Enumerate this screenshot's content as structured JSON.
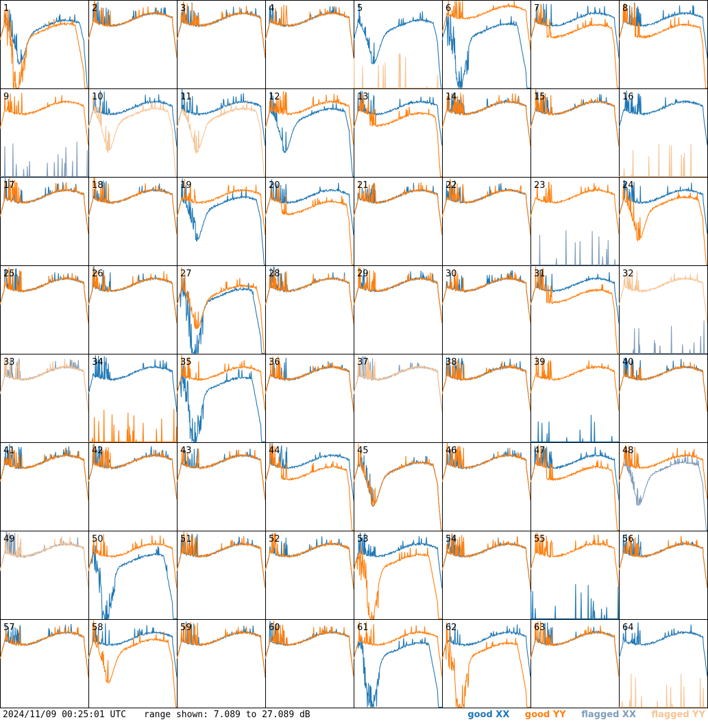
{
  "chart_data": {
    "type": "line",
    "layout": "8x8 small multiples",
    "timestamp": "2024/11/09 00:25:01 UTC",
    "range_label": "range shown: 7.089 to 27.089 dB",
    "y_range_db": [
      7.089,
      27.089
    ],
    "legend": {
      "good_xx": "good XX",
      "good_yy": "good YY",
      "flagged_xx": "flagged XX",
      "flagged_yy": "flagged YY"
    },
    "colors": {
      "good_xx": "#1f77b4",
      "good_yy": "#ff7f0e",
      "flagged_xx": "#7f9cbb",
      "flagged_yy": "#f7c493"
    },
    "panels": [
      {
        "id": "1",
        "xx": "good",
        "yy": "good",
        "xx_shape": "drop",
        "yy_shape": "deepdrop"
      },
      {
        "id": "2",
        "xx": "good",
        "yy": "good",
        "xx_shape": "normal",
        "yy_shape": "normal"
      },
      {
        "id": "3",
        "xx": "good",
        "yy": "good",
        "xx_shape": "normal",
        "yy_shape": "normal"
      },
      {
        "id": "4",
        "xx": "good",
        "yy": "good",
        "xx_shape": "normal",
        "yy_shape": "normal"
      },
      {
        "id": "5",
        "xx": "good",
        "yy": "flagged",
        "xx_shape": "drop",
        "yy_shape": "dead"
      },
      {
        "id": "6",
        "xx": "good",
        "yy": "good",
        "xx_shape": "deepdrop",
        "yy_shape": "high"
      },
      {
        "id": "7",
        "xx": "good",
        "yy": "good",
        "xx_shape": "normal",
        "yy_shape": "lowflat"
      },
      {
        "id": "8",
        "xx": "good",
        "yy": "good",
        "xx_shape": "normal",
        "yy_shape": "lowflat"
      },
      {
        "id": "9",
        "xx": "flagged",
        "yy": "good",
        "xx_shape": "dead",
        "yy_shape": "normal"
      },
      {
        "id": "10",
        "xx": "good",
        "yy": "flagged",
        "xx_shape": "normal",
        "yy_shape": "drop"
      },
      {
        "id": "11",
        "xx": "good",
        "yy": "flagged",
        "xx_shape": "normal",
        "yy_shape": "drop"
      },
      {
        "id": "12",
        "xx": "good",
        "yy": "good",
        "xx_shape": "drop",
        "yy_shape": "normal"
      },
      {
        "id": "13",
        "xx": "good",
        "yy": "good",
        "xx_shape": "normal",
        "yy_shape": "lowflat"
      },
      {
        "id": "14",
        "xx": "good",
        "yy": "good",
        "xx_shape": "normal",
        "yy_shape": "normal"
      },
      {
        "id": "15",
        "xx": "good",
        "yy": "good",
        "xx_shape": "normal",
        "yy_shape": "normal"
      },
      {
        "id": "16",
        "xx": "good",
        "yy": "flagged",
        "xx_shape": "normal",
        "yy_shape": "dead"
      },
      {
        "id": "17",
        "xx": "good",
        "yy": "good",
        "xx_shape": "normal",
        "yy_shape": "normal"
      },
      {
        "id": "18",
        "xx": "good",
        "yy": "good",
        "xx_shape": "normal",
        "yy_shape": "normal"
      },
      {
        "id": "19",
        "xx": "good",
        "yy": "good",
        "xx_shape": "drop",
        "yy_shape": "normal"
      },
      {
        "id": "20",
        "xx": "good",
        "yy": "good",
        "xx_shape": "normal",
        "yy_shape": "lowflat"
      },
      {
        "id": "21",
        "xx": "good",
        "yy": "good",
        "xx_shape": "normal",
        "yy_shape": "normal"
      },
      {
        "id": "22",
        "xx": "good",
        "yy": "good",
        "xx_shape": "normal",
        "yy_shape": "normal"
      },
      {
        "id": "23",
        "xx": "flagged",
        "yy": "good",
        "xx_shape": "dead",
        "yy_shape": "normal"
      },
      {
        "id": "24",
        "xx": "good",
        "yy": "good",
        "xx_shape": "normal",
        "yy_shape": "drop"
      },
      {
        "id": "25",
        "xx": "good",
        "yy": "good",
        "xx_shape": "normal",
        "yy_shape": "normal"
      },
      {
        "id": "26",
        "xx": "good",
        "yy": "good",
        "xx_shape": "normal",
        "yy_shape": "normal"
      },
      {
        "id": "27",
        "xx": "good",
        "yy": "good",
        "xx_shape": "deepdrop",
        "yy_shape": "drop"
      },
      {
        "id": "28",
        "xx": "good",
        "yy": "good",
        "xx_shape": "normal",
        "yy_shape": "normal"
      },
      {
        "id": "29",
        "xx": "good",
        "yy": "good",
        "xx_shape": "normal",
        "yy_shape": "normal"
      },
      {
        "id": "30",
        "xx": "good",
        "yy": "good",
        "xx_shape": "normal",
        "yy_shape": "normal"
      },
      {
        "id": "31",
        "xx": "good",
        "yy": "good",
        "xx_shape": "normal",
        "yy_shape": "lowflat"
      },
      {
        "id": "32",
        "xx": "flagged",
        "yy": "flagged",
        "xx_shape": "dead",
        "yy_shape": "normal"
      },
      {
        "id": "33",
        "xx": "flagged",
        "yy": "flagged",
        "xx_shape": "normal",
        "yy_shape": "normal"
      },
      {
        "id": "34",
        "xx": "good",
        "yy": "good",
        "xx_shape": "normal",
        "yy_shape": "dead"
      },
      {
        "id": "35",
        "xx": "good",
        "yy": "good",
        "xx_shape": "deepdrop",
        "yy_shape": "normal"
      },
      {
        "id": "36",
        "xx": "good",
        "yy": "good",
        "xx_shape": "normal",
        "yy_shape": "normal"
      },
      {
        "id": "37",
        "xx": "flagged",
        "yy": "flagged",
        "xx_shape": "normal",
        "yy_shape": "normal"
      },
      {
        "id": "38",
        "xx": "good",
        "yy": "good",
        "xx_shape": "normal",
        "yy_shape": "normal"
      },
      {
        "id": "39",
        "xx": "good",
        "yy": "good",
        "xx_shape": "dead",
        "yy_shape": "normal"
      },
      {
        "id": "40",
        "xx": "good",
        "yy": "good",
        "xx_shape": "normal",
        "yy_shape": "normal"
      },
      {
        "id": "41",
        "xx": "good",
        "yy": "good",
        "xx_shape": "normal",
        "yy_shape": "normal"
      },
      {
        "id": "42",
        "xx": "good",
        "yy": "good",
        "xx_shape": "normal",
        "yy_shape": "normal"
      },
      {
        "id": "43",
        "xx": "good",
        "yy": "good",
        "xx_shape": "normal",
        "yy_shape": "normal"
      },
      {
        "id": "44",
        "xx": "good",
        "yy": "good",
        "xx_shape": "normal",
        "yy_shape": "lowflat"
      },
      {
        "id": "45",
        "xx": "good",
        "yy": "good",
        "xx_shape": "drop",
        "yy_shape": "drop"
      },
      {
        "id": "46",
        "xx": "good",
        "yy": "good",
        "xx_shape": "normal",
        "yy_shape": "normal"
      },
      {
        "id": "47",
        "xx": "good",
        "yy": "good",
        "xx_shape": "normal",
        "yy_shape": "lowflat"
      },
      {
        "id": "48",
        "xx": "flagged",
        "yy": "good",
        "xx_shape": "drop",
        "yy_shape": "normal"
      },
      {
        "id": "49",
        "xx": "flagged",
        "yy": "flagged",
        "xx_shape": "normal",
        "yy_shape": "normal"
      },
      {
        "id": "50",
        "xx": "good",
        "yy": "good",
        "xx_shape": "deepdrop",
        "yy_shape": "normal"
      },
      {
        "id": "51",
        "xx": "good",
        "yy": "good",
        "xx_shape": "normal",
        "yy_shape": "normal"
      },
      {
        "id": "52",
        "xx": "good",
        "yy": "good",
        "xx_shape": "normal",
        "yy_shape": "normal"
      },
      {
        "id": "53",
        "xx": "good",
        "yy": "good",
        "xx_shape": "normal",
        "yy_shape": "deepdrop"
      },
      {
        "id": "54",
        "xx": "good",
        "yy": "good",
        "xx_shape": "normal",
        "yy_shape": "normal"
      },
      {
        "id": "55",
        "xx": "good",
        "yy": "good",
        "xx_shape": "dead",
        "yy_shape": "normal"
      },
      {
        "id": "56",
        "xx": "good",
        "yy": "good",
        "xx_shape": "normal",
        "yy_shape": "normal"
      },
      {
        "id": "57",
        "xx": "good",
        "yy": "good",
        "xx_shape": "normal",
        "yy_shape": "normal"
      },
      {
        "id": "58",
        "xx": "good",
        "yy": "good",
        "xx_shape": "normal",
        "yy_shape": "drop"
      },
      {
        "id": "59",
        "xx": "good",
        "yy": "good",
        "xx_shape": "normal",
        "yy_shape": "normal"
      },
      {
        "id": "60",
        "xx": "good",
        "yy": "good",
        "xx_shape": "normal",
        "yy_shape": "normal"
      },
      {
        "id": "61",
        "xx": "good",
        "yy": "good",
        "xx_shape": "deepdrop",
        "yy_shape": "normal"
      },
      {
        "id": "62",
        "xx": "good",
        "yy": "good",
        "xx_shape": "normal",
        "yy_shape": "deepdrop"
      },
      {
        "id": "63",
        "xx": "good",
        "yy": "good",
        "xx_shape": "normal",
        "yy_shape": "normal"
      },
      {
        "id": "64",
        "xx": "good",
        "yy": "flagged",
        "xx_shape": "normal",
        "yy_shape": "dead"
      }
    ]
  }
}
